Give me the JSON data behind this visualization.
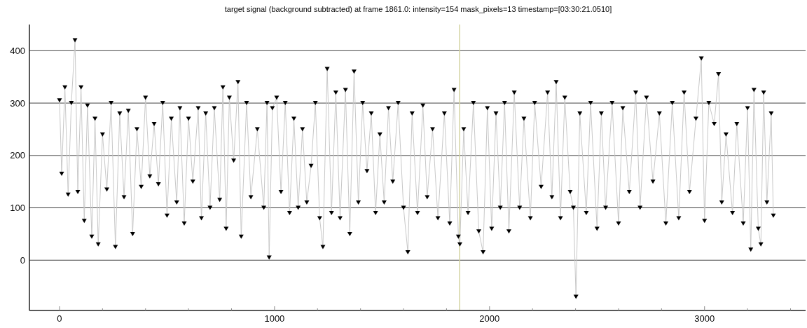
{
  "chart_data": {
    "type": "line",
    "title": "target signal (background subtracted) at frame 1861.0: intensity=154 mask_pixels=13 timestamp=[03:30:21.0510]",
    "x": [
      0,
      10,
      25,
      40,
      55,
      72,
      85,
      100,
      115,
      130,
      150,
      165,
      180,
      200,
      220,
      240,
      260,
      280,
      300,
      320,
      340,
      360,
      380,
      400,
      420,
      440,
      460,
      480,
      500,
      520,
      545,
      560,
      580,
      600,
      620,
      645,
      660,
      680,
      700,
      720,
      745,
      760,
      775,
      790,
      810,
      830,
      845,
      870,
      890,
      920,
      950,
      965,
      975,
      990,
      1010,
      1030,
      1050,
      1070,
      1090,
      1110,
      1130,
      1150,
      1170,
      1190,
      1210,
      1225,
      1245,
      1265,
      1285,
      1305,
      1330,
      1350,
      1370,
      1390,
      1410,
      1430,
      1450,
      1470,
      1490,
      1510,
      1530,
      1550,
      1575,
      1600,
      1620,
      1640,
      1665,
      1690,
      1710,
      1735,
      1760,
      1790,
      1815,
      1835,
      1855,
      1862,
      1880,
      1900,
      1925,
      1950,
      1970,
      1990,
      2010,
      2030,
      2050,
      2070,
      2090,
      2115,
      2140,
      2160,
      2190,
      2210,
      2240,
      2270,
      2290,
      2310,
      2330,
      2350,
      2375,
      2390,
      2402,
      2420,
      2450,
      2470,
      2500,
      2520,
      2540,
      2570,
      2600,
      2620,
      2650,
      2680,
      2700,
      2730,
      2760,
      2790,
      2820,
      2850,
      2880,
      2905,
      2930,
      2960,
      2985,
      3000,
      3020,
      3045,
      3065,
      3080,
      3100,
      3130,
      3150,
      3180,
      3200,
      3215,
      3230,
      3250,
      3262,
      3275,
      3290,
      3310,
      3320
    ],
    "series": [
      {
        "color": "#000000",
        "values": [
          305,
          165,
          330,
          125,
          300,
          420,
          130,
          330,
          75,
          295,
          45,
          270,
          30,
          240,
          135,
          300,
          25,
          280,
          120,
          285,
          50,
          250,
          140,
          310,
          160,
          260,
          145,
          300,
          85,
          270,
          110,
          290,
          70,
          270,
          150,
          290,
          80,
          280,
          100,
          290,
          115,
          330,
          60,
          310,
          190,
          340,
          45,
          300,
          120,
          250,
          100,
          300,
          5,
          290,
          310,
          130,
          300,
          90,
          270,
          100,
          250,
          110,
          180,
          300,
          80,
          25,
          365,
          90,
          320,
          80,
          325,
          50,
          360,
          110,
          300,
          170,
          280,
          90,
          240,
          110,
          290,
          150,
          300,
          100,
          15,
          280,
          90,
          295,
          120,
          250,
          80,
          280,
          70,
          325,
          45,
          30,
          250,
          90,
          300,
          55,
          15,
          290,
          60,
          280,
          100,
          300,
          55,
          320,
          100,
          270,
          80,
          300,
          140,
          320,
          120,
          340,
          80,
          310,
          130,
          100,
          -70,
          280,
          90,
          300,
          60,
          280,
          100,
          300,
          70,
          290,
          130,
          320,
          100,
          310,
          150,
          280,
          70,
          300,
          80,
          320,
          130,
          270,
          385,
          75,
          300,
          260,
          355,
          110,
          240,
          90,
          260,
          70,
          290,
          20,
          325,
          60,
          30,
          320,
          110,
          280,
          85
        ]
      }
    ],
    "xlim": [
      -140,
      3470
    ],
    "ylim": [
      -96,
      450
    ],
    "xticks": [
      0,
      {
        "value": 200,
        "label": null
      },
      {
        "value": 400,
        "label": null
      },
      {
        "value": 600,
        "label": null
      },
      {
        "value": 800,
        "label": null
      },
      1000,
      {
        "value": 1200,
        "label": null
      },
      {
        "value": 1400,
        "label": null
      },
      {
        "value": 1600,
        "label": null
      },
      {
        "value": 1800,
        "label": null
      },
      2000,
      {
        "value": 2200,
        "label": null
      },
      {
        "value": 2400,
        "label": null
      },
      {
        "value": 2600,
        "label": null
      },
      {
        "value": 2800,
        "label": null
      },
      3000,
      {
        "value": 3200,
        "label": null
      },
      {
        "value": 3400,
        "label": null
      }
    ],
    "yticks": [
      0,
      100,
      200,
      300,
      400
    ],
    "grid": "y",
    "marker": "triangle",
    "line_style": "solid",
    "ref_lines": [
      {
        "axis": "x",
        "value": 1861,
        "color": "#d4d4a0"
      }
    ]
  }
}
